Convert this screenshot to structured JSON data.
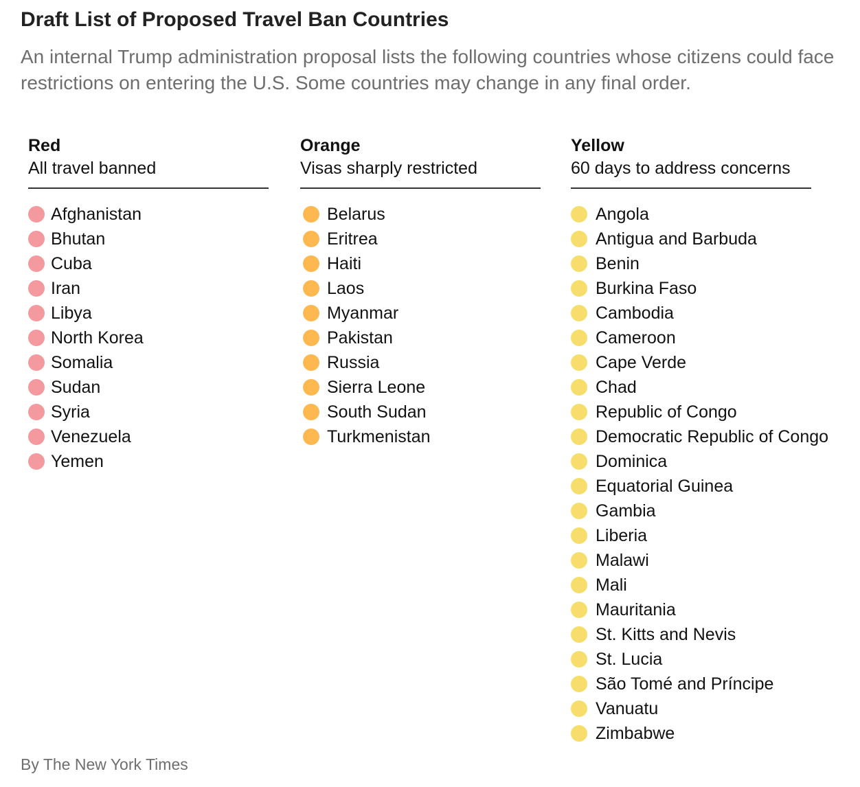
{
  "title": "Draft List of Proposed Travel Ban Countries",
  "subtitle": "An internal Trump administration proposal lists the following countries whose citizens could face restrictions on entering the U.S. Some countries may change in any final order.",
  "columns": [
    {
      "heading": "Red",
      "description": "All travel banned",
      "dot_color": "#f4999e",
      "countries": [
        "Afghanistan",
        "Bhutan",
        "Cuba",
        "Iran",
        "Libya",
        "North Korea",
        "Somalia",
        "Sudan",
        "Syria",
        "Venezuela",
        "Yemen"
      ]
    },
    {
      "heading": "Orange",
      "description": "Visas sharply restricted",
      "dot_color": "#fdb84f",
      "countries": [
        "Belarus",
        "Eritrea",
        "Haiti",
        "Laos",
        "Myanmar",
        "Pakistan",
        "Russia",
        "Sierra Leone",
        "South Sudan",
        "Turkmenistan"
      ]
    },
    {
      "heading": "Yellow",
      "description": "60 days to address concerns",
      "dot_color": "#f7de6c",
      "countries": [
        "Angola",
        "Antigua and Barbuda",
        "Benin",
        "Burkina Faso",
        "Cambodia",
        "Cameroon",
        "Cape Verde",
        "Chad",
        "Republic of Congo",
        "Democratic Republic of Congo",
        "Dominica",
        "Equatorial Guinea",
        "Gambia",
        "Liberia",
        "Malawi",
        "Mali",
        "Mauritania",
        "St. Kitts and Nevis",
        "St. Lucia",
        "São Tomé and Príncipe",
        "Vanuatu",
        "Zimbabwe"
      ]
    }
  ],
  "credit": "By The New York Times"
}
